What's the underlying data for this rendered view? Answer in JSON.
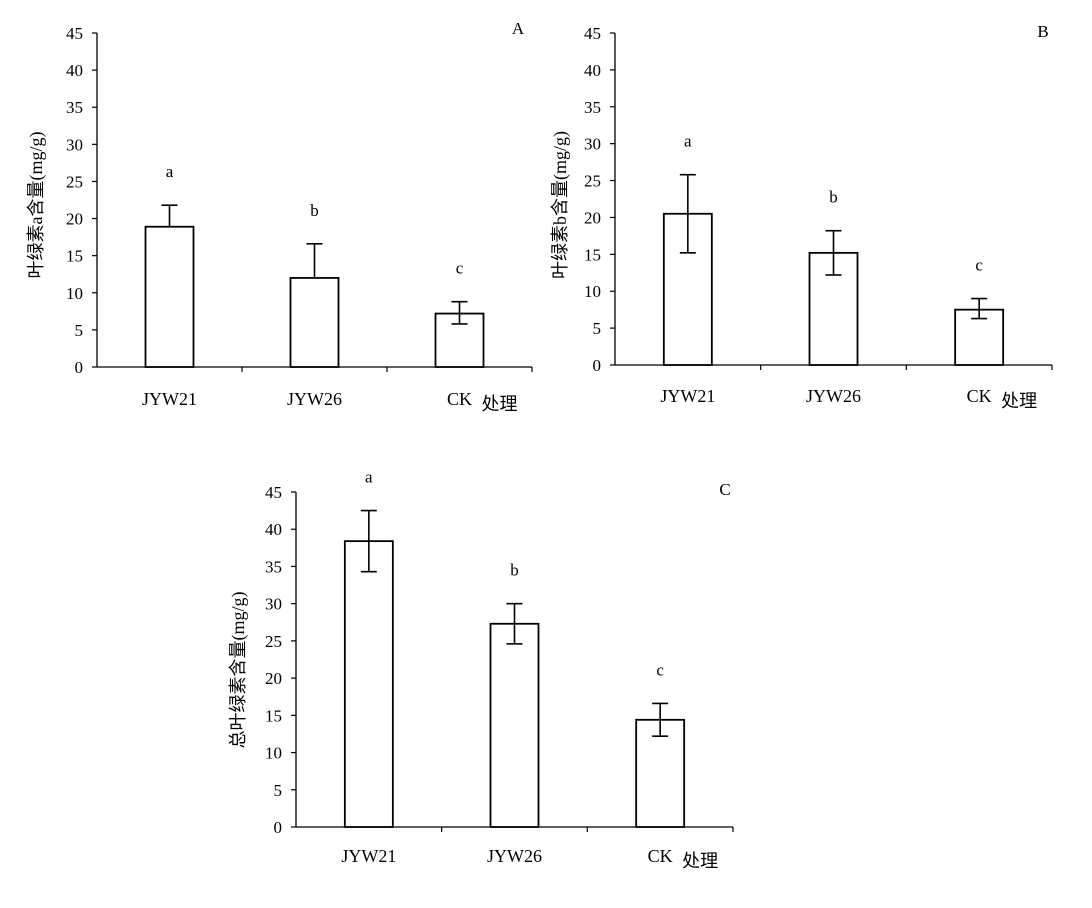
{
  "chart_data": [
    {
      "panel_label": "A",
      "type": "bar",
      "categories": [
        "JYW21",
        "JYW26",
        "CK"
      ],
      "values": [
        18.9,
        12.0,
        7.2
      ],
      "error_upper": [
        21.8,
        16.6,
        8.8
      ],
      "error_lower": [
        18.9,
        12.0,
        5.8
      ],
      "significance_letters": [
        "a",
        "b",
        "c"
      ],
      "xlabel": "处理",
      "ylabel": "叶绿素a含量(mg/g)",
      "ylim": [
        0,
        45
      ],
      "yticks": [
        "0",
        "5",
        "10",
        "15",
        "20",
        "25",
        "30",
        "35",
        "40",
        "45"
      ],
      "grid": false
    },
    {
      "panel_label": "B",
      "type": "bar",
      "categories": [
        "JYW21",
        "JYW26",
        "CK"
      ],
      "values": [
        20.5,
        15.2,
        7.5
      ],
      "error_upper": [
        25.8,
        18.2,
        9.0
      ],
      "error_lower": [
        15.2,
        12.2,
        6.3
      ],
      "significance_letters": [
        "a",
        "b",
        "c"
      ],
      "xlabel": "处理",
      "ylabel": "叶绿素b含量(mg/g)",
      "ylim": [
        0,
        45
      ],
      "yticks": [
        "0",
        "5",
        "10",
        "15",
        "20",
        "25",
        "30",
        "35",
        "40",
        "45"
      ],
      "grid": false
    },
    {
      "panel_label": "C",
      "type": "bar",
      "categories": [
        "JYW21",
        "JYW26",
        "CK"
      ],
      "values": [
        38.4,
        27.3,
        14.4
      ],
      "error_upper": [
        42.5,
        30.0,
        16.6
      ],
      "error_lower": [
        34.3,
        24.6,
        12.2
      ],
      "significance_letters": [
        "a",
        "b",
        "c"
      ],
      "xlabel": "处理",
      "ylabel": "总叶绿素含量(mg/g)",
      "ylim": [
        0,
        45
      ],
      "yticks": [
        "0",
        "5",
        "10",
        "15",
        "20",
        "25",
        "30",
        "35",
        "40",
        "45"
      ],
      "grid": false
    }
  ]
}
